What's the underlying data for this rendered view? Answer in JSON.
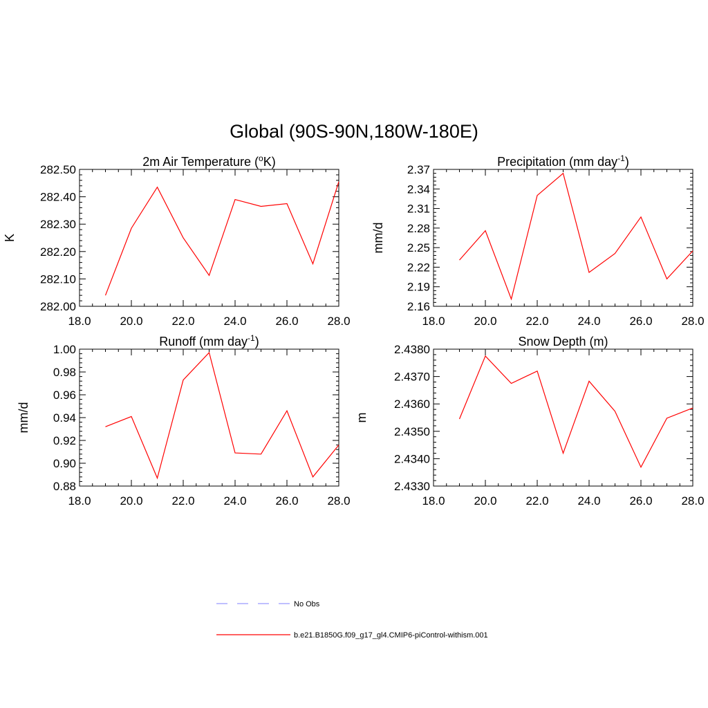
{
  "figure": {
    "title": "Global (90S-90N,180W-180E)"
  },
  "legend": {
    "items": [
      {
        "label": "No Obs",
        "color": "#9999ff",
        "style": "dashed"
      },
      {
        "label": "b.e21.B1850G.f09_g17_gl4.CMIP6-piControl-withism.001",
        "color": "#ff0000",
        "style": "solid"
      }
    ]
  },
  "chart_data": [
    {
      "type": "line",
      "title": "2m Air Temperature (",
      "title_sup": "o",
      "title_after": "K)",
      "ylabel": "K",
      "xlim": [
        18,
        28
      ],
      "ylim": [
        282.0,
        282.5
      ],
      "xticks": [
        "18.0",
        "20.0",
        "22.0",
        "24.0",
        "26.0",
        "28.0"
      ],
      "yticks": [
        "282.00",
        "282.10",
        "282.20",
        "282.30",
        "282.40",
        "282.50"
      ],
      "series": [
        {
          "color": "#ff0000",
          "x": [
            19,
            20,
            21,
            22,
            23,
            24,
            25,
            26,
            27,
            28
          ],
          "y": [
            282.04,
            282.285,
            282.435,
            282.25,
            282.113,
            282.39,
            282.365,
            282.375,
            282.155,
            282.455
          ]
        }
      ]
    },
    {
      "type": "line",
      "title": "Precipitation (mm day",
      "title_sup": "-1",
      "title_after": ")",
      "ylabel": "mm/d",
      "xlim": [
        18,
        28
      ],
      "ylim": [
        2.16,
        2.37
      ],
      "xticks": [
        "18.0",
        "20.0",
        "22.0",
        "24.0",
        "26.0",
        "28.0"
      ],
      "yticks": [
        "2.16",
        "2.19",
        "2.22",
        "2.25",
        "2.28",
        "2.31",
        "2.34",
        "2.37"
      ],
      "series": [
        {
          "color": "#ff0000",
          "x": [
            19,
            20,
            21,
            22,
            23,
            24,
            25,
            26,
            27,
            28
          ],
          "y": [
            2.231,
            2.276,
            2.171,
            2.33,
            2.364,
            2.212,
            2.241,
            2.297,
            2.202,
            2.245
          ]
        }
      ]
    },
    {
      "type": "line",
      "title": "Runoff (mm day",
      "title_sup": "-1",
      "title_after": ")",
      "ylabel": "mm/d",
      "xlim": [
        18,
        28
      ],
      "ylim": [
        0.88,
        1.0
      ],
      "xticks": [
        "18.0",
        "20.0",
        "22.0",
        "24.0",
        "26.0",
        "28.0"
      ],
      "yticks": [
        "0.88",
        "0.90",
        "0.92",
        "0.94",
        "0.96",
        "0.98",
        "1.00"
      ],
      "series": [
        {
          "color": "#ff0000",
          "x": [
            19,
            20,
            21,
            22,
            23,
            24,
            25,
            26,
            27,
            28
          ],
          "y": [
            0.932,
            0.941,
            0.887,
            0.973,
            0.997,
            0.909,
            0.908,
            0.946,
            0.888,
            0.916
          ]
        }
      ]
    },
    {
      "type": "line",
      "title": "Snow Depth (m)",
      "title_sup": "",
      "title_after": "",
      "ylabel": "m",
      "xlim": [
        18,
        28
      ],
      "ylim": [
        2.433,
        2.438
      ],
      "xticks": [
        "18.0",
        "20.0",
        "22.0",
        "24.0",
        "26.0",
        "28.0"
      ],
      "yticks": [
        "2.4330",
        "2.4340",
        "2.4350",
        "2.4360",
        "2.4370",
        "2.4380"
      ],
      "series": [
        {
          "color": "#ff0000",
          "x": [
            19,
            20,
            21,
            22,
            23,
            24,
            25,
            26,
            27,
            28
          ],
          "y": [
            2.43545,
            2.43775,
            2.43675,
            2.4372,
            2.4342,
            2.43683,
            2.43573,
            2.43369,
            2.43548,
            2.43585
          ]
        }
      ]
    }
  ]
}
